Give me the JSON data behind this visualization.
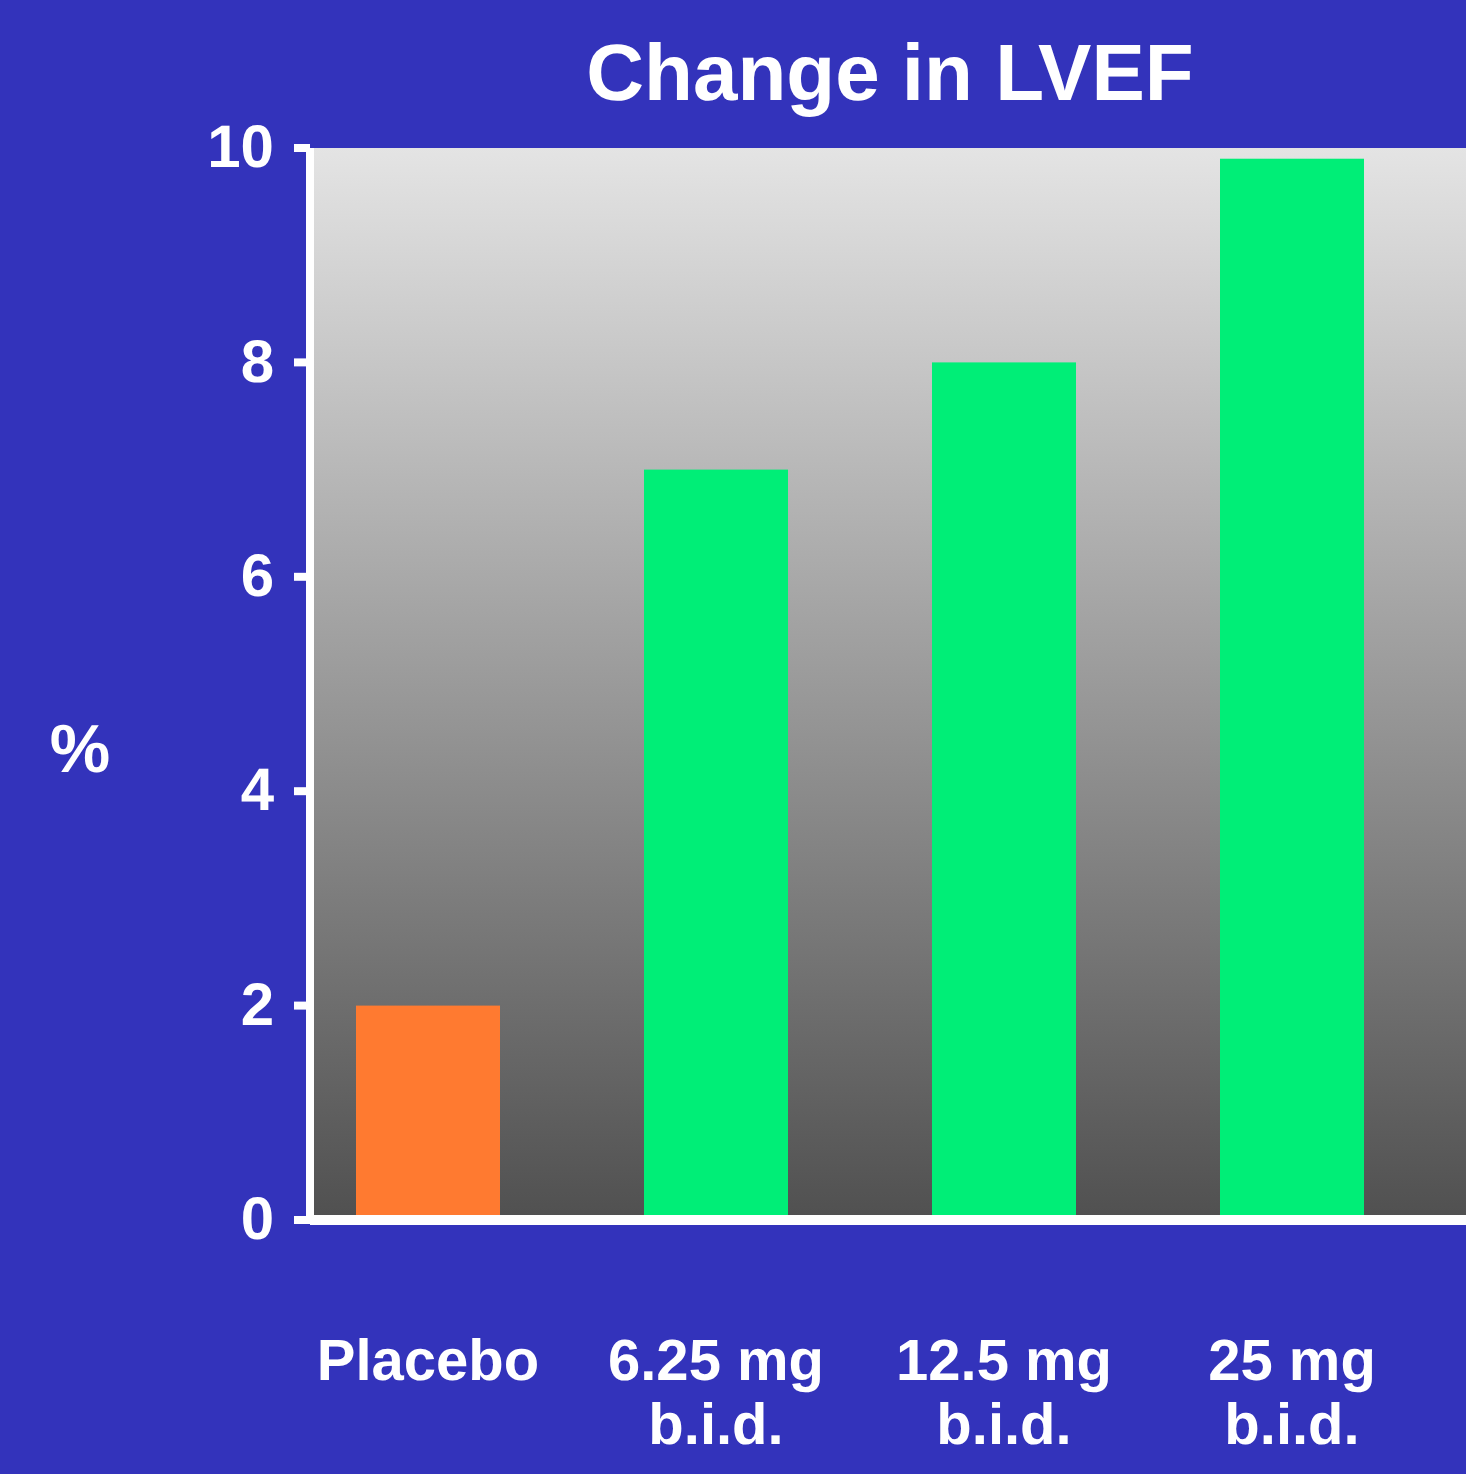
{
  "chart_data": {
    "type": "bar",
    "title": "Change in LVEF",
    "ylabel": "%",
    "categories": [
      "Placebo",
      "6.25 mg b.i.d.",
      "12.5 mg b.i.d.",
      "25 mg b.i.d."
    ],
    "values": [
      2,
      7,
      8,
      9.9
    ],
    "colors": [
      "#ff7a30",
      "#00ee77",
      "#00ee77",
      "#00ee77"
    ],
    "ylim": [
      0,
      10
    ],
    "yticks": [
      0,
      2,
      4,
      6,
      8,
      10
    ],
    "grid": false
  }
}
